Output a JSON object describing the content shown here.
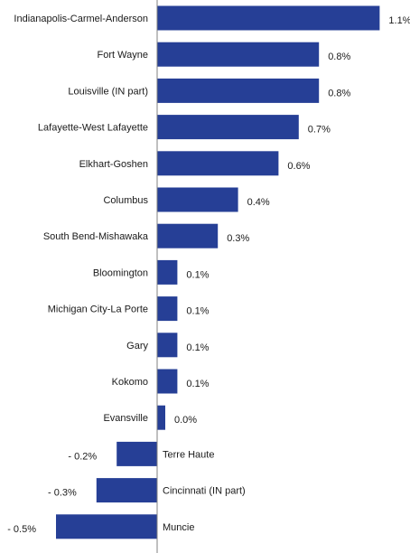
{
  "chart_data": {
    "type": "bar",
    "orientation": "horizontal",
    "title": "",
    "xlabel": "",
    "ylabel": "",
    "grid": false,
    "legend": "none",
    "bar_color": "#263f96",
    "axis_color": "#808080",
    "xlim": [
      -0.5,
      1.1
    ],
    "categories": [
      "Indianapolis-Carmel-Anderson",
      "Fort Wayne",
      "Louisville (IN part)",
      "Lafayette-West Lafayette",
      "Elkhart-Goshen",
      "Columbus",
      "South Bend-Mishawaka",
      "Bloomington",
      "Michigan City-La Porte",
      "Gary",
      "Kokomo",
      "Evansville",
      "Terre Haute",
      "Cincinnati (IN part)",
      "Muncie"
    ],
    "values": [
      1.1,
      0.8,
      0.8,
      0.7,
      0.6,
      0.4,
      0.3,
      0.1,
      0.1,
      0.1,
      0.1,
      0.0,
      -0.2,
      -0.3,
      -0.5
    ],
    "value_labels": [
      "1.1%",
      "0.8%",
      "0.8%",
      "0.7%",
      "0.6%",
      "0.4%",
      "0.3%",
      "0.1%",
      "0.1%",
      "0.1%",
      "0.1%",
      "0.0%",
      "- 0.2%",
      "- 0.3%",
      "- 0.5%"
    ]
  }
}
